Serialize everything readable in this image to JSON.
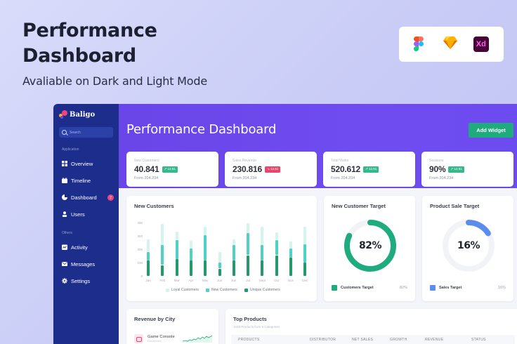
{
  "hero": {
    "title_line1": "Performance",
    "title_line2": "Dashboard",
    "subtitle": "Avaliable on Dark and Light Mode"
  },
  "tools": [
    {
      "name": "figma-icon",
      "label": "Figma"
    },
    {
      "name": "sketch-icon",
      "label": "Sketch"
    },
    {
      "name": "xd-icon",
      "label": "Xd"
    }
  ],
  "sidebar": {
    "brand": "Baligo",
    "search_placeholder": "Search",
    "section_application": "Application",
    "section_others": "Others",
    "items": [
      {
        "label": "Overview",
        "icon": "grid-icon"
      },
      {
        "label": "Timeline",
        "icon": "calendar-icon"
      },
      {
        "label": "Dashboard",
        "icon": "pie-chart-icon",
        "badge": "2"
      },
      {
        "label": "Users",
        "icon": "user-icon"
      },
      {
        "label": "Activity",
        "icon": "activity-icon"
      },
      {
        "label": "Messages",
        "icon": "mail-icon"
      },
      {
        "label": "Settings",
        "icon": "gear-icon"
      }
    ]
  },
  "header": {
    "title": "Performance Dashboard",
    "add_widget_label": "Add Widget"
  },
  "stats": [
    {
      "label": "New Customers",
      "value": "40.841",
      "badge": "↗ 12.51",
      "trend": "up",
      "from": "From 204.234"
    },
    {
      "label": "Sales Revenue",
      "value": "230.816",
      "badge": "↘ 12.51",
      "trend": "down",
      "from": "From 204.234"
    },
    {
      "label": "Total Visitor",
      "value": "520.612",
      "badge": "↗ 12.51",
      "trend": "up",
      "from": "From 204.234"
    },
    {
      "label": "Sessions",
      "value": "90%",
      "badge": "↗ 12.51",
      "trend": "up",
      "from": "From 204.234"
    }
  ],
  "colors": {
    "accent": "#6b47ee",
    "sidebar": "#1d2d8c",
    "success": "#1eab7e",
    "danger": "#e8457a",
    "loyal": "#d4f4ee",
    "new": "#4fd1c5",
    "unique": "#249a6c",
    "sales_target": "#5b8def"
  },
  "new_customers_chart": {
    "title": "New Customers",
    "legend": [
      "Loyal Customers",
      "New Customers",
      "Unique Customers"
    ]
  },
  "chart_data": {
    "type": "bar",
    "title": "New Customers",
    "xlabel": "",
    "ylabel": "",
    "stacked": true,
    "ylim": [
      0,
      400
    ],
    "yticks": [
      0,
      100,
      200,
      300,
      400
    ],
    "categories": [
      "Jan",
      "Feb",
      "Mar",
      "Apr",
      "May",
      "Jun",
      "Jun",
      "Jul",
      "Sept",
      "Oct",
      "Nov",
      "Dec"
    ],
    "series": [
      {
        "name": "Unique Customers",
        "values": [
          120,
          85,
          130,
          120,
          120,
          60,
          120,
          160,
          120,
          160,
          140,
          105
        ]
      },
      {
        "name": "New Customers",
        "values": [
          65,
          150,
          145,
          90,
          190,
          45,
          115,
          165,
          115,
          115,
          70,
          135
        ]
      },
      {
        "name": "Loyal Customers",
        "values": [
          95,
          160,
          60,
          60,
          65,
          80,
          45,
          75,
          140,
          55,
          55,
          135
        ]
      }
    ],
    "legend_position": "bottom",
    "grid": false
  },
  "targets": [
    {
      "title": "New Customer Target",
      "percent": "82%",
      "value": 82,
      "legend": "Customers Target",
      "legend_value": "82%",
      "color": "#1eab7e"
    },
    {
      "title": "Product Sale Target",
      "percent": "16%",
      "value": 16,
      "legend": "Sales Target",
      "legend_value": "16%",
      "color": "#5b8def"
    }
  ],
  "revenue_by_city": {
    "title": "Revenue by City",
    "items": [
      {
        "name": "Game Console",
        "sub": "Electronics"
      }
    ]
  },
  "top_products": {
    "title": "Top Products",
    "subtitle": "1029 Products from 6 Categories",
    "columns": [
      "PRODUCTS",
      "DISTRIBUTOR",
      "NET SALES",
      "GROWTH",
      "REVENUE",
      "STATUS"
    ]
  }
}
